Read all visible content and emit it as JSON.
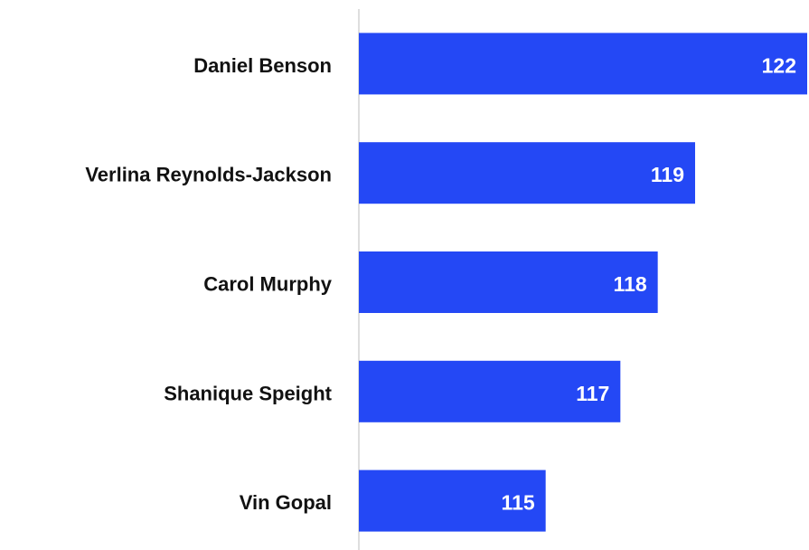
{
  "chart_data": {
    "type": "hbar",
    "categories": [
      "Daniel Benson",
      "Verlina Reynolds-Jackson",
      "Carol Murphy",
      "Shanique Speight",
      "Vin Gopal"
    ],
    "values": [
      122,
      119,
      118,
      117,
      115
    ],
    "color": "#2448f5",
    "xlim": [
      110,
      122
    ]
  }
}
